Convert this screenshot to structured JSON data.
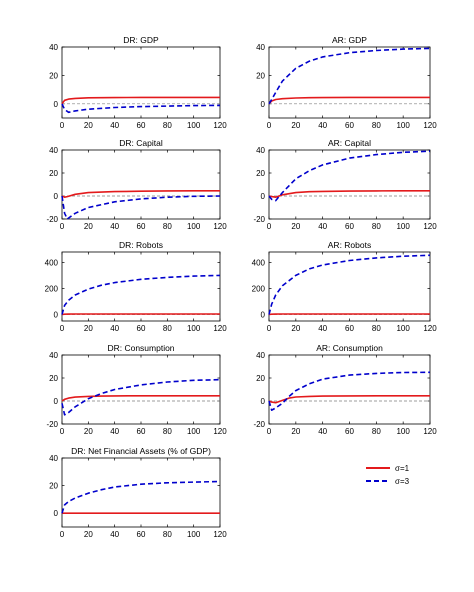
{
  "chart_data": [
    {
      "type": "line",
      "title": "DR: GDP",
      "xlim": [
        0,
        120
      ],
      "ylim": [
        -10,
        40
      ],
      "xticks": [
        0,
        20,
        40,
        60,
        80,
        100,
        120
      ],
      "yticks": [
        0,
        20,
        40
      ],
      "x": [
        0,
        2,
        5,
        10,
        20,
        40,
        60,
        80,
        100,
        120
      ],
      "series": [
        {
          "name": "σ=1",
          "values": [
            0,
            2.5,
            3.3,
            3.8,
            4.2,
            4.4,
            4.5,
            4.5,
            4.5,
            4.5
          ]
        },
        {
          "name": "σ=3",
          "values": [
            0,
            -4,
            -6,
            -5,
            -3.8,
            -2.6,
            -2,
            -1.6,
            -1.3,
            -1.1
          ]
        }
      ]
    },
    {
      "type": "line",
      "title": "AR: GDP",
      "xlim": [
        0,
        120
      ],
      "ylim": [
        -10,
        40
      ],
      "xticks": [
        0,
        20,
        40,
        60,
        80,
        100,
        120
      ],
      "yticks": [
        0,
        20,
        40
      ],
      "x": [
        0,
        2,
        5,
        10,
        20,
        30,
        40,
        60,
        80,
        100,
        120
      ],
      "series": [
        {
          "name": "σ=1",
          "values": [
            0,
            2,
            3,
            3.6,
            4.1,
            4.3,
            4.4,
            4.5,
            4.5,
            4.5,
            4.5
          ]
        },
        {
          "name": "σ=3",
          "values": [
            0,
            3,
            8,
            16,
            25,
            30,
            33,
            36,
            37.5,
            38.5,
            39
          ]
        }
      ]
    },
    {
      "type": "line",
      "title": "DR: Capital",
      "xlim": [
        0,
        120
      ],
      "ylim": [
        -20,
        40
      ],
      "xticks": [
        0,
        20,
        40,
        60,
        80,
        100,
        120
      ],
      "yticks": [
        -20,
        0,
        20,
        40
      ],
      "x": [
        0,
        2,
        4,
        10,
        20,
        40,
        60,
        80,
        100,
        120
      ],
      "series": [
        {
          "name": "σ=1",
          "values": [
            0,
            -1,
            -0.5,
            1.5,
            3,
            3.8,
            4.2,
            4.4,
            4.5,
            4.5
          ]
        },
        {
          "name": "σ=3",
          "values": [
            0,
            -15,
            -20,
            -15,
            -10,
            -5,
            -2.5,
            -1,
            -0.3,
            0
          ]
        }
      ]
    },
    {
      "type": "line",
      "title": "AR: Capital",
      "xlim": [
        0,
        120
      ],
      "ylim": [
        -20,
        40
      ],
      "xticks": [
        0,
        20,
        40,
        60,
        80,
        100,
        120
      ],
      "yticks": [
        -20,
        0,
        20,
        40
      ],
      "x": [
        0,
        2,
        5,
        10,
        20,
        30,
        40,
        60,
        80,
        100,
        120
      ],
      "series": [
        {
          "name": "σ=1",
          "values": [
            0,
            -0.5,
            -1,
            1,
            3,
            3.7,
            4,
            4.3,
            4.4,
            4.5,
            4.5
          ]
        },
        {
          "name": "σ=3",
          "values": [
            0,
            -3,
            -4,
            3,
            15,
            22,
            27,
            33,
            36,
            38,
            39
          ]
        }
      ]
    },
    {
      "type": "line",
      "title": "DR: Robots",
      "xlim": [
        0,
        120
      ],
      "ylim": [
        -50,
        480
      ],
      "xticks": [
        0,
        20,
        40,
        60,
        80,
        100,
        120
      ],
      "yticks": [
        0,
        200,
        400
      ],
      "x": [
        0,
        2,
        5,
        10,
        20,
        30,
        40,
        60,
        80,
        100,
        120
      ],
      "series": [
        {
          "name": "σ=1",
          "values": [
            0,
            2,
            3,
            4,
            4,
            4,
            4,
            4,
            4,
            4,
            4
          ]
        },
        {
          "name": "σ=3",
          "values": [
            0,
            70,
            110,
            150,
            195,
            225,
            245,
            270,
            285,
            295,
            300
          ]
        }
      ]
    },
    {
      "type": "line",
      "title": "AR: Robots",
      "xlim": [
        0,
        120
      ],
      "ylim": [
        -50,
        480
      ],
      "xticks": [
        0,
        20,
        40,
        60,
        80,
        100,
        120
      ],
      "yticks": [
        0,
        200,
        400
      ],
      "x": [
        0,
        2,
        5,
        10,
        20,
        30,
        40,
        60,
        80,
        100,
        120
      ],
      "series": [
        {
          "name": "σ=1",
          "values": [
            0,
            2,
            3,
            4,
            4,
            4,
            4,
            4,
            4,
            4,
            4
          ]
        },
        {
          "name": "σ=3",
          "values": [
            0,
            80,
            150,
            220,
            300,
            350,
            380,
            415,
            435,
            448,
            455
          ]
        }
      ]
    },
    {
      "type": "line",
      "title": "DR: Consumption",
      "xlim": [
        0,
        120
      ],
      "ylim": [
        -20,
        40
      ],
      "xticks": [
        0,
        20,
        40,
        60,
        80,
        100,
        120
      ],
      "yticks": [
        -20,
        0,
        20,
        40
      ],
      "x": [
        0,
        2,
        5,
        10,
        20,
        30,
        40,
        60,
        80,
        100,
        120
      ],
      "series": [
        {
          "name": "σ=1",
          "values": [
            0,
            1.5,
            2.5,
            3.4,
            4,
            4.3,
            4.4,
            4.5,
            4.5,
            4.5,
            4.5
          ]
        },
        {
          "name": "σ=3",
          "values": [
            -2,
            -12,
            -10,
            -5,
            2,
            6.5,
            10,
            14,
            16.5,
            18,
            18.5
          ]
        }
      ]
    },
    {
      "type": "line",
      "title": "AR: Consumption",
      "xlim": [
        0,
        120
      ],
      "ylim": [
        -20,
        40
      ],
      "xticks": [
        0,
        20,
        40,
        60,
        80,
        100,
        120
      ],
      "yticks": [
        -20,
        0,
        20,
        40
      ],
      "x": [
        0,
        2,
        5,
        10,
        15,
        20,
        30,
        40,
        60,
        80,
        100,
        120
      ],
      "series": [
        {
          "name": "σ=1",
          "values": [
            0,
            -1,
            -1.5,
            0.5,
            2.5,
            3.5,
            4,
            4.3,
            4.4,
            4.5,
            4.5,
            4.5
          ]
        },
        {
          "name": "σ=3",
          "values": [
            0,
            -8,
            -6,
            -2,
            4,
            9,
            15,
            19,
            22.5,
            24,
            24.8,
            25
          ]
        }
      ]
    },
    {
      "type": "line",
      "title": "DR: Net Financial Assets (% of GDP)",
      "xlim": [
        0,
        120
      ],
      "ylim": [
        -10,
        40
      ],
      "xticks": [
        0,
        20,
        40,
        60,
        80,
        100,
        120
      ],
      "yticks": [
        0,
        20,
        40
      ],
      "x": [
        0,
        2,
        5,
        10,
        20,
        30,
        40,
        60,
        80,
        100,
        120
      ],
      "series": [
        {
          "name": "σ=1",
          "values": [
            0,
            0,
            0,
            0,
            0,
            0,
            0,
            0,
            0,
            0,
            0
          ]
        },
        {
          "name": "σ=3",
          "values": [
            0,
            6,
            8.5,
            11,
            14.5,
            17,
            19,
            21,
            22,
            22.5,
            23
          ]
        }
      ]
    }
  ],
  "legend": {
    "items": [
      {
        "label": "σ=1",
        "color": "#e31a1c",
        "style": "solid"
      },
      {
        "label": "σ=3",
        "color": "#0000cc",
        "style": "dashed"
      }
    ]
  },
  "colors": {
    "s1": "#e31a1c",
    "s3": "#0000cc",
    "zero": "#7f7f7f"
  }
}
